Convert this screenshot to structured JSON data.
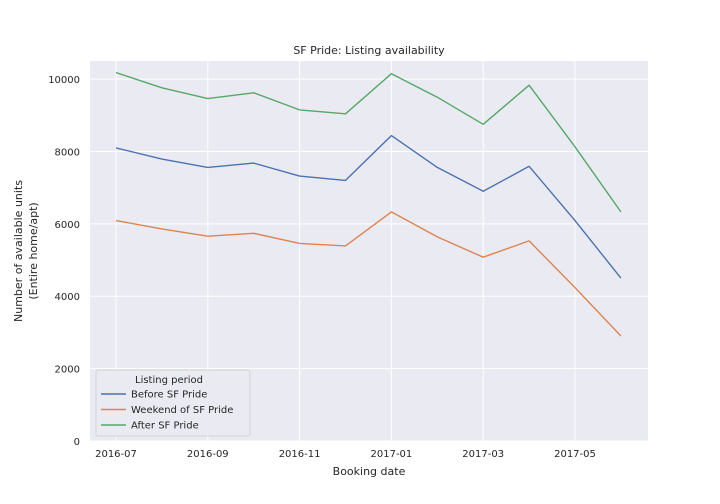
{
  "chart_data": {
    "type": "line",
    "title": "SF Pride: Listing availability",
    "xlabel": "Booking date",
    "ylabel": [
      "Number of available units",
      "(Entire home/apt)"
    ],
    "x": [
      "2016-07",
      "2016-08",
      "2016-09",
      "2016-10",
      "2016-11",
      "2016-12",
      "2017-01",
      "2017-02",
      "2017-03",
      "2017-04",
      "2017-05",
      "2017-06"
    ],
    "xticks": [
      "2016-07",
      "2016-09",
      "2016-11",
      "2017-01",
      "2017-03",
      "2017-05"
    ],
    "ylim": [
      0,
      10500
    ],
    "yticks": [
      0,
      2000,
      4000,
      6000,
      8000,
      10000
    ],
    "grid": true,
    "legend": {
      "title": "Listing period",
      "placement": "lower-left"
    },
    "series": [
      {
        "name": "Before SF Pride",
        "color": "#4c72b0",
        "values": [
          8100,
          7790,
          7560,
          7680,
          7320,
          7200,
          8440,
          7560,
          6900,
          7590,
          6090,
          4500
        ]
      },
      {
        "name": "Weekend of SF Pride",
        "color": "#dd8452",
        "values": [
          6090,
          5860,
          5660,
          5740,
          5460,
          5390,
          6330,
          5640,
          5080,
          5530,
          4240,
          2900
        ]
      },
      {
        "name": "After SF Pride",
        "color": "#55a868",
        "values": [
          10180,
          9760,
          9460,
          9620,
          9150,
          9040,
          10150,
          9500,
          8750,
          9830,
          8130,
          6330
        ]
      }
    ]
  }
}
